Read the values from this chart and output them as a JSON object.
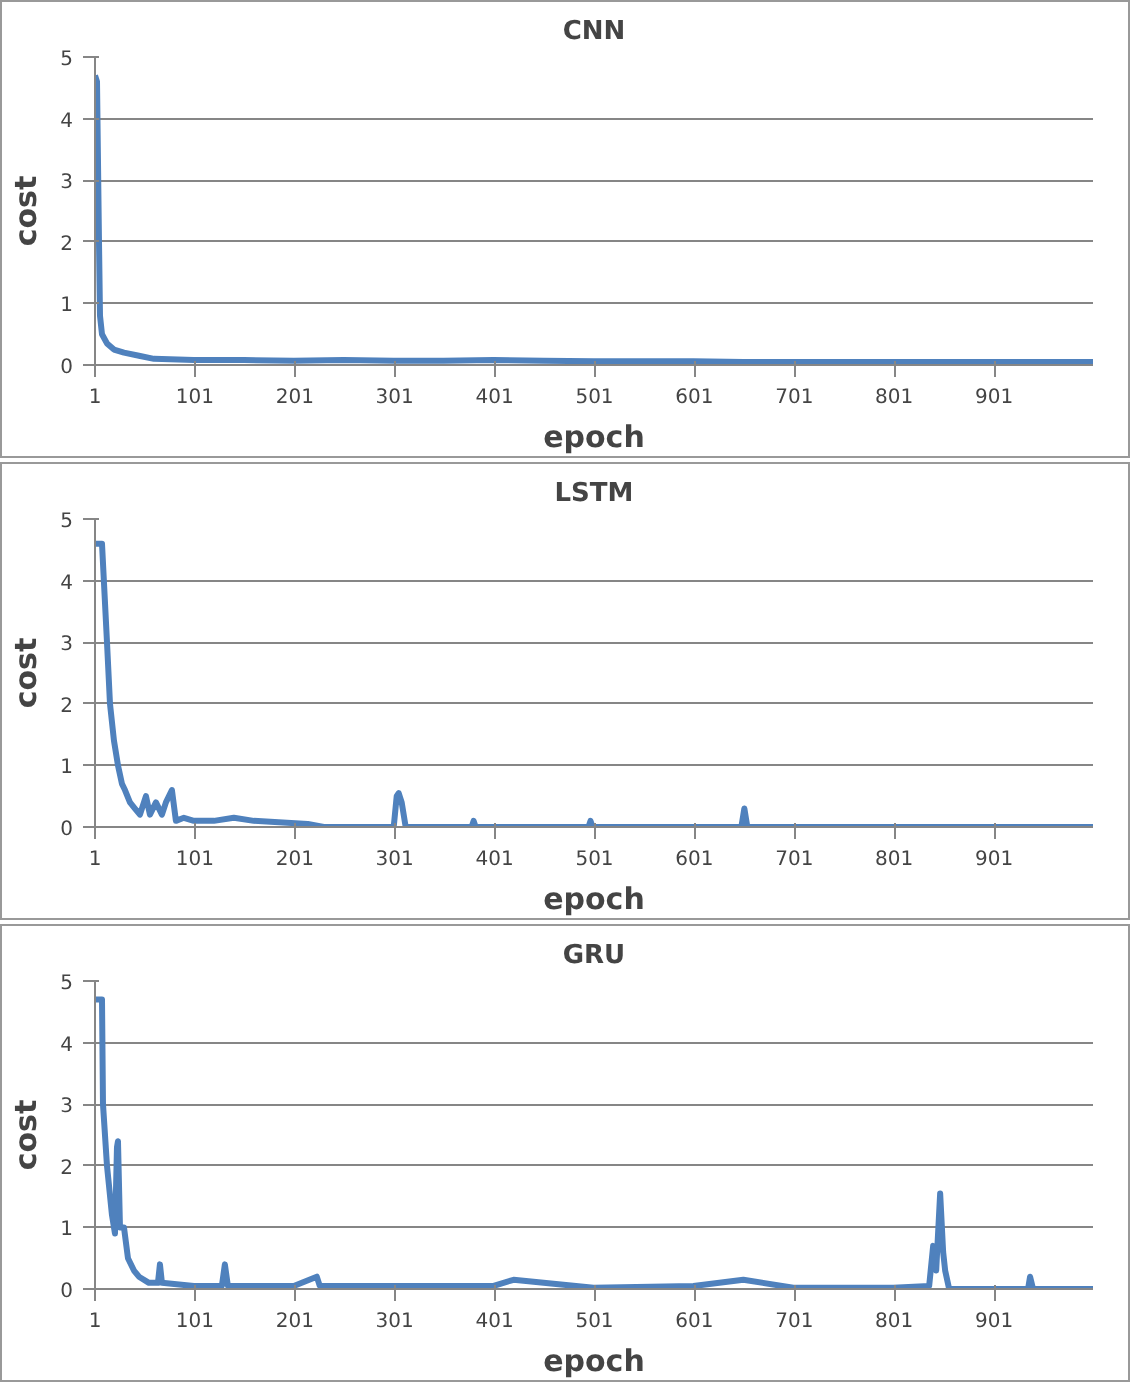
{
  "chart_data": [
    {
      "type": "line",
      "title": "CNN",
      "xlabel": "epoch",
      "ylabel": "cost",
      "grid": "y",
      "xlim": [
        1,
        1000
      ],
      "ylim": [
        0,
        5
      ],
      "xticks": [
        1,
        101,
        201,
        301,
        401,
        501,
        601,
        701,
        801,
        901
      ],
      "yticks": [
        0,
        1,
        2,
        3,
        4,
        5
      ],
      "series": [
        {
          "color": "#4f81bd",
          "x": [
            1,
            3,
            5,
            6,
            8,
            13,
            20,
            30,
            45,
            60,
            100,
            150,
            200,
            250,
            300,
            350,
            400,
            450,
            500,
            550,
            600,
            650,
            700,
            750,
            800,
            850,
            900,
            950,
            1000
          ],
          "values": [
            4.7,
            4.6,
            2.0,
            0.8,
            0.5,
            0.35,
            0.25,
            0.2,
            0.15,
            0.1,
            0.08,
            0.08,
            0.07,
            0.08,
            0.07,
            0.07,
            0.08,
            0.07,
            0.06,
            0.06,
            0.06,
            0.05,
            0.05,
            0.05,
            0.05,
            0.05,
            0.05,
            0.05,
            0.05
          ]
        }
      ]
    },
    {
      "type": "line",
      "title": "LSTM",
      "xlabel": "epoch",
      "ylabel": "cost",
      "grid": "y",
      "xlim": [
        1,
        1000
      ],
      "ylim": [
        0,
        5
      ],
      "xticks": [
        1,
        101,
        201,
        301,
        401,
        501,
        601,
        701,
        801,
        901
      ],
      "yticks": [
        0,
        1,
        2,
        3,
        4,
        5
      ],
      "series": [
        {
          "color": "#4f81bd",
          "x": [
            1,
            8,
            13,
            16,
            20,
            24,
            28,
            31,
            36,
            41,
            46,
            52,
            56,
            62,
            68,
            72,
            78,
            82,
            90,
            100,
            120,
            140,
            160,
            214,
            230,
            300,
            303,
            305,
            308,
            312,
            378,
            380,
            382,
            495,
            497,
            499,
            648,
            651,
            654,
            700,
            800,
            900,
            1000
          ],
          "values": [
            4.6,
            4.6,
            3.0,
            2.0,
            1.4,
            1.0,
            0.7,
            0.6,
            0.4,
            0.3,
            0.2,
            0.5,
            0.2,
            0.4,
            0.2,
            0.4,
            0.6,
            0.1,
            0.15,
            0.1,
            0.1,
            0.15,
            0.1,
            0.05,
            0.0,
            0.0,
            0.5,
            0.55,
            0.4,
            0.0,
            0.0,
            0.1,
            0.0,
            0.0,
            0.1,
            0.0,
            0.0,
            0.3,
            0.0,
            0.0,
            0.0,
            0.0,
            0.0
          ]
        }
      ]
    },
    {
      "type": "line",
      "title": "GRU",
      "xlabel": "epoch",
      "ylabel": "cost",
      "grid": "y",
      "xlim": [
        1,
        1000
      ],
      "ylim": [
        0,
        5
      ],
      "xticks": [
        1,
        101,
        201,
        301,
        401,
        501,
        601,
        701,
        801,
        901
      ],
      "yticks": [
        0,
        1,
        2,
        3,
        4,
        5
      ],
      "series": [
        {
          "color": "#4f81bd",
          "x": [
            1,
            8,
            9,
            13,
            18,
            21,
            23,
            24,
            26,
            27,
            30,
            34,
            40,
            45,
            55,
            64,
            66,
            68,
            100,
            128,
            131,
            134,
            200,
            223,
            226,
            300,
            400,
            420,
            500,
            600,
            650,
            700,
            800,
            836,
            840,
            843,
            847,
            850,
            852,
            856,
            900,
            935,
            937,
            940,
            1000
          ],
          "values": [
            4.7,
            4.7,
            3.0,
            2.0,
            1.2,
            0.9,
            2.3,
            2.4,
            1.0,
            1.0,
            1.0,
            0.5,
            0.3,
            0.2,
            0.1,
            0.1,
            0.4,
            0.1,
            0.05,
            0.05,
            0.4,
            0.05,
            0.05,
            0.2,
            0.05,
            0.05,
            0.05,
            0.15,
            0.02,
            0.05,
            0.15,
            0.02,
            0.02,
            0.05,
            0.7,
            0.3,
            1.55,
            0.6,
            0.3,
            0.0,
            0.0,
            0.0,
            0.2,
            0.0,
            0.0
          ]
        }
      ]
    }
  ]
}
